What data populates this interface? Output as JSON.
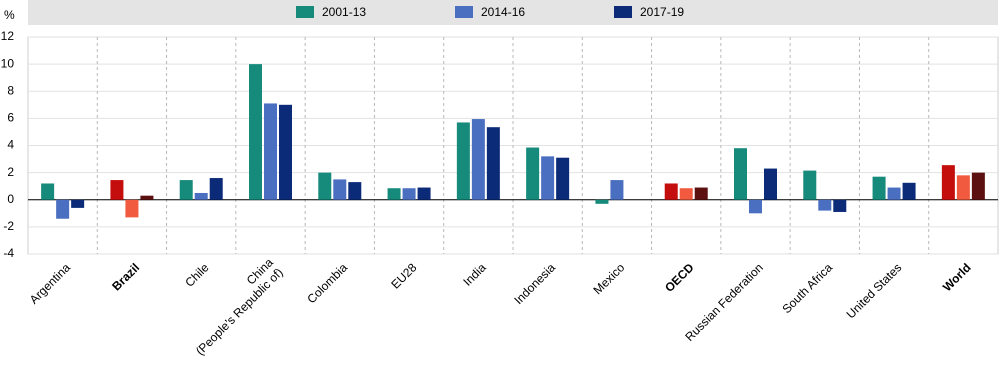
{
  "chart_data": {
    "type": "bar",
    "y_label": "%",
    "categories": [
      "Argentina",
      "Brazil",
      "Chile",
      "China\n(People’s Republic of)",
      "Colombia",
      "EU28",
      "India",
      "Indonesia",
      "Mexico",
      "OECD",
      "Russian Federation",
      "South Africa",
      "United States",
      "World"
    ],
    "highlight_indices": [
      1,
      9,
      13
    ],
    "series": [
      {
        "name": "2001-13",
        "color": "#168a7b",
        "highlight_color": "#c40d0d",
        "values": [
          1.2,
          1.45,
          1.45,
          10.0,
          2.0,
          0.85,
          5.7,
          3.85,
          -0.3,
          1.2,
          3.8,
          2.15,
          1.7,
          2.55
        ]
      },
      {
        "name": "2014-16",
        "color": "#4a6fc0",
        "highlight_color": "#f15a3e",
        "values": [
          -1.4,
          -1.3,
          0.5,
          7.1,
          1.5,
          0.85,
          5.95,
          3.2,
          1.45,
          0.85,
          -1.0,
          -0.8,
          0.9,
          1.8
        ]
      },
      {
        "name": "2017-19",
        "color": "#0b2a78",
        "highlight_color": "#5c1010",
        "values": [
          -0.6,
          0.3,
          1.6,
          7.0,
          1.3,
          0.9,
          5.35,
          3.1,
          0.0,
          0.9,
          2.3,
          -0.9,
          1.25,
          2.0
        ]
      }
    ],
    "ylim": [
      -4,
      12
    ],
    "yticks": [
      -4,
      -2,
      0,
      2,
      4,
      6,
      8,
      10,
      12
    ],
    "grid": true
  }
}
